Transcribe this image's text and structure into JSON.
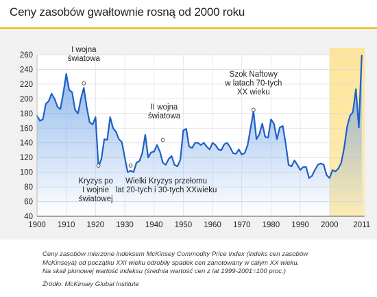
{
  "header": {
    "title": "Ceny zasobów gwałtownie rosną od 2000 roku"
  },
  "caption": {
    "line1": "Ceny zasobów mierzone indeksem McKinsey Commodity Price Index (indeks cen zasobów",
    "line2": "McKinseya) od początku XXI wieku odrobiły spadek cen zanotowany w całym XX wieku.",
    "line3": "Na skali pionowej wartość indeksu (średnia wartość cen z lat 1999-2001=100 proc.)",
    "source": "Źródło: McKinsey Global Institute"
  },
  "colors": {
    "accent": "#f2b700",
    "line": "#1f5fc7",
    "fill_top": "#6fa3e6",
    "highlight": "#fde59a"
  },
  "chart_data": {
    "type": "area",
    "title": "Ceny zasobów gwałtownie rosną od 2000 roku",
    "xlabel": "",
    "ylabel": "",
    "xlim": [
      1900,
      2012
    ],
    "ylim": [
      40,
      260
    ],
    "x_ticks": [
      "1900",
      "1910",
      "1920",
      "1930",
      "1940",
      "1950",
      "1960",
      "1970",
      "1980",
      "1990",
      "2000",
      "2011"
    ],
    "x_tick_values": [
      1900,
      1910,
      1920,
      1930,
      1940,
      1950,
      1960,
      1970,
      1980,
      1990,
      2000,
      2011
    ],
    "y_ticks": [
      "40",
      "60",
      "80",
      "100",
      "120",
      "140",
      "160",
      "180",
      "200",
      "220",
      "240",
      "260"
    ],
    "y_tick_values": [
      40,
      60,
      80,
      100,
      120,
      140,
      160,
      180,
      200,
      220,
      240,
      260
    ],
    "grid": true,
    "highlight_range": [
      2000,
      2012
    ],
    "series": [
      {
        "x": [
          1900,
          1901,
          1902,
          1903,
          1904,
          1905,
          1906,
          1907,
          1908,
          1909,
          1910,
          1911,
          1912,
          1913,
          1914,
          1915,
          1916,
          1917,
          1918,
          1919,
          1920,
          1921,
          1922,
          1923,
          1924,
          1925,
          1926,
          1927,
          1928,
          1929,
          1930,
          1931,
          1932,
          1933,
          1934,
          1935,
          1936,
          1937,
          1938,
          1939,
          1940,
          1941,
          1942,
          1943,
          1944,
          1945,
          1946,
          1947,
          1948,
          1949,
          1950,
          1951,
          1952,
          1953,
          1954,
          1955,
          1956,
          1957,
          1958,
          1959,
          1960,
          1961,
          1962,
          1963,
          1964,
          1965,
          1966,
          1967,
          1968,
          1969,
          1970,
          1971,
          1972,
          1973,
          1974,
          1975,
          1976,
          1977,
          1978,
          1979,
          1980,
          1981,
          1982,
          1983,
          1984,
          1985,
          1986,
          1987,
          1988,
          1989,
          1990,
          1991,
          1992,
          1993,
          1994,
          1995,
          1996,
          1997,
          1998,
          1999,
          2000,
          2001,
          2002,
          2003,
          2004,
          2005,
          2006,
          2007,
          2008,
          2009,
          2010,
          2011
        ],
        "y": [
          177,
          170,
          172,
          193,
          197,
          207,
          200,
          189,
          186,
          208,
          234,
          212,
          209,
          185,
          180,
          200,
          215,
          188,
          168,
          165,
          175,
          107,
          118,
          145,
          144,
          175,
          160,
          155,
          145,
          141,
          120,
          100,
          102,
          100,
          113,
          115,
          126,
          151,
          120,
          127,
          128,
          137,
          128,
          113,
          110,
          118,
          122,
          110,
          108,
          117,
          157,
          159,
          135,
          133,
          140,
          140,
          137,
          140,
          135,
          131,
          140,
          137,
          131,
          130,
          138,
          140,
          134,
          126,
          125,
          131,
          124,
          126,
          137,
          160,
          183,
          145,
          152,
          166,
          148,
          147,
          172,
          166,
          145,
          161,
          163,
          139,
          110,
          108,
          116,
          110,
          103,
          107,
          107,
          92,
          95,
          103,
          110,
          112,
          110,
          96,
          92,
          103,
          101,
          105,
          113,
          133,
          162,
          177,
          182,
          213,
          161,
          259
        ]
      }
    ],
    "annotations": [
      {
        "text_lines": [
          "I wojna",
          "światowa"
        ],
        "x": 1916,
        "y": 221
      },
      {
        "text_lines": [
          "Kryzys po",
          "I wojnie",
          "światowej"
        ],
        "x": 1921,
        "y": 109
      },
      {
        "text_lines": [
          "Wielki Kryzys przełomu",
          "lat 20-tych i 30-tych XXwieku"
        ],
        "x": 1932,
        "y": 109
      },
      {
        "text_lines": [
          "II wojna",
          "światowa"
        ],
        "x": 1943,
        "y": 144
      },
      {
        "text_lines": [
          "Szok Naftowy",
          "w latach 70-tych",
          "XX wieku"
        ],
        "x": 1974,
        "y": 185
      }
    ]
  }
}
